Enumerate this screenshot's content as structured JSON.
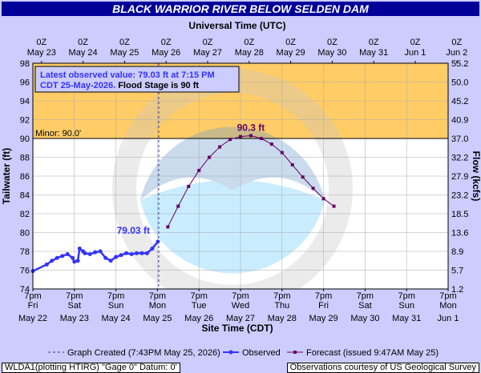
{
  "chart_data": {
    "type": "line",
    "title": "BLACK WARRIOR RIVER BELOW SELDEN DAM",
    "top_axis_title": "Universal Time (UTC)",
    "bottom_axis_title": "Site Time (CDT)",
    "ylabel_left": "Tailwater (ft)",
    "ylabel_right": "Flow (kcfs)",
    "ylim": [
      74,
      98
    ],
    "y_ticks": [
      "74",
      "76",
      "78",
      "80",
      "82",
      "84",
      "86",
      "88",
      "90",
      "92",
      "94",
      "96",
      "98"
    ],
    "right_ticks": [
      "1.2",
      "5.7",
      "8.9",
      "13.6",
      "18.5",
      "23.2",
      "27.9",
      "32.2",
      "37.0",
      "40.9",
      "45.2",
      "50.0",
      "55.2"
    ],
    "top_ticks": [
      {
        "time": "0Z",
        "date": "May 23"
      },
      {
        "time": "0Z",
        "date": "May 24"
      },
      {
        "time": "0Z",
        "date": "May 25"
      },
      {
        "time": "0Z",
        "date": "May 26"
      },
      {
        "time": "0Z",
        "date": "May 27"
      },
      {
        "time": "0Z",
        "date": "May 28"
      },
      {
        "time": "0Z",
        "date": "May 29"
      },
      {
        "time": "0Z",
        "date": "May 30"
      },
      {
        "time": "0Z",
        "date": "May 31"
      },
      {
        "time": "0Z",
        "date": "Jun  1"
      },
      {
        "time": "0Z",
        "date": "Jun  2"
      }
    ],
    "bottom_ticks": [
      {
        "time": "7pm",
        "day": "Fri",
        "date": "May 22"
      },
      {
        "time": "7pm",
        "day": "Sat",
        "date": "May 23"
      },
      {
        "time": "7pm",
        "day": "Sun",
        "date": "May 24"
      },
      {
        "time": "7pm",
        "day": "Mon",
        "date": "May 25"
      },
      {
        "time": "7pm",
        "day": "Tue",
        "date": "May 26"
      },
      {
        "time": "7pm",
        "day": "Wed",
        "date": "May 27"
      },
      {
        "time": "7pm",
        "day": "Thu",
        "date": "May 28"
      },
      {
        "time": "7pm",
        "day": "Fri",
        "date": "May 29"
      },
      {
        "time": "7pm",
        "day": "Sat",
        "date": "May 30"
      },
      {
        "time": "7pm",
        "day": "Sun",
        "date": "May 31"
      },
      {
        "time": "7pm",
        "day": "Mon",
        "date": "Jun 1"
      }
    ],
    "flood_stage": 90,
    "minor_label": "Minor: 90.0'",
    "annotation_box": {
      "line1": "Latest observed value: 79.03 ft at 7:15 PM",
      "line2_a": "CDT 25-May-2026.",
      "line2_b": " Flood Stage is 90 ft"
    },
    "observed_label": "79.03 ft",
    "forecast_peak_label": "90.3 ft",
    "series": [
      {
        "name": "Observed",
        "color": "#3333ff",
        "x": [
          "May 22 19:00",
          "May 23 03:00",
          "May 23 06:00",
          "May 23 09:00",
          "May 23 12:00",
          "May 23 15:00",
          "May 23 18:00",
          "May 23 19:00",
          "May 23 21:00",
          "May 23 22:00",
          "May 24 00:00",
          "May 24 01:00",
          "May 24 04:00",
          "May 24 07:00",
          "May 24 10:00",
          "May 24 13:00",
          "May 24 16:00",
          "May 24 19:00",
          "May 24 22:00",
          "May 25 01:00",
          "May 25 04:00",
          "May 25 07:00",
          "May 25 10:00",
          "May 25 13:00",
          "May 25 16:00",
          "May 25 19:15"
        ],
        "values": [
          75.9,
          76.6,
          77.0,
          77.3,
          77.5,
          77.7,
          77.3,
          76.9,
          77.0,
          78.3,
          78.0,
          77.8,
          77.7,
          77.9,
          78.0,
          77.3,
          77.0,
          77.4,
          77.6,
          77.8,
          77.7,
          77.8,
          77.8,
          77.8,
          78.3,
          79.03
        ]
      },
      {
        "name": "Forecast (issued 9:47AM May 25)",
        "color": "#660066",
        "x": [
          "May 26 01:00",
          "May 26 07:00",
          "May 26 13:00",
          "May 26 19:00",
          "May 27 01:00",
          "May 27 07:00",
          "May 27 13:00",
          "May 27 19:00",
          "May 28 01:00",
          "May 28 07:00",
          "May 28 13:00",
          "May 28 19:00",
          "May 29 01:00",
          "May 29 07:00",
          "May 29 13:00",
          "May 29 19:00",
          "May 30 01:00"
        ],
        "values": [
          80.6,
          82.8,
          84.9,
          86.6,
          88.0,
          89.1,
          89.9,
          90.2,
          90.3,
          90.0,
          89.4,
          88.5,
          87.2,
          85.9,
          84.7,
          83.6,
          82.8
        ]
      }
    ],
    "legend": {
      "created": "Graph Created (7:43PM May 25, 2026)",
      "observed": "Observed",
      "forecast": "Forecast (issued 9:47AM May 25)"
    },
    "footer_left": "WLDA1(plotting HTIRG) \"Gage 0\" Datum: 0'",
    "footer_right": "Observations courtesy of US Geological Survey",
    "colors": {
      "plot_bg": "#ffffff",
      "flood_zone": "#ffcc66",
      "border": "#ccccff",
      "title_bg": "#000099",
      "observed": "#3333ff",
      "forecast": "#660066",
      "annot_blue": "#3333ff"
    }
  }
}
